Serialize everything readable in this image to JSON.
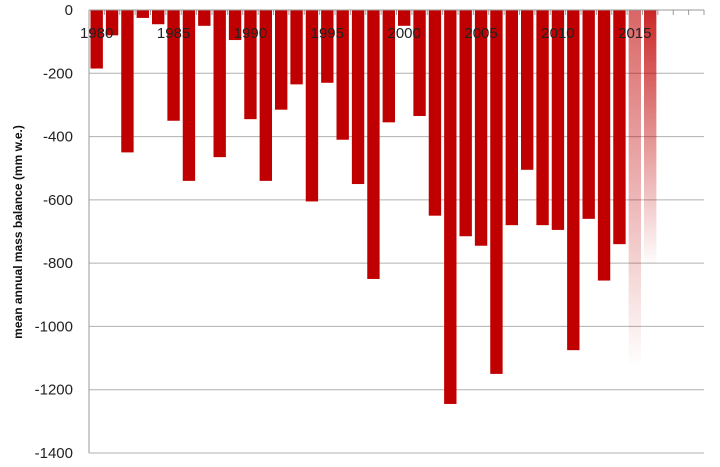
{
  "chart_data": {
    "type": "bar",
    "title": "",
    "xlabel": "",
    "ylabel": "mean annual mass balance (mm w.e.)",
    "ylim": [
      -1400,
      0
    ],
    "yticks": [
      0,
      -200,
      -400,
      -600,
      -800,
      -1000,
      -1200,
      -1400
    ],
    "grid": true,
    "bar_color": "#c00000",
    "x_tick_labels": [
      "1980",
      "1985",
      "1990",
      "1995",
      "2000",
      "2005",
      "2010",
      "2015"
    ],
    "categories": [
      1980,
      1981,
      1982,
      1983,
      1984,
      1985,
      1986,
      1987,
      1988,
      1989,
      1990,
      1991,
      1992,
      1993,
      1994,
      1995,
      1996,
      1997,
      1998,
      1999,
      2000,
      2001,
      2002,
      2003,
      2004,
      2005,
      2006,
      2007,
      2008,
      2009,
      2010,
      2011,
      2012,
      2013,
      2014,
      2015,
      2016
    ],
    "values": [
      -185,
      -80,
      -450,
      -25,
      -45,
      -350,
      -540,
      -50,
      -465,
      -95,
      -345,
      -540,
      -315,
      -235,
      -605,
      -230,
      -410,
      -550,
      -850,
      -355,
      -50,
      -335,
      -650,
      -1245,
      -715,
      -745,
      -1150,
      -680,
      -505,
      -680,
      -695,
      -1075,
      -660,
      -855,
      -740,
      -1130,
      -810
    ],
    "faded_categories": [
      2015,
      2016
    ],
    "x_axis_range": [
      1980,
      2019
    ]
  }
}
